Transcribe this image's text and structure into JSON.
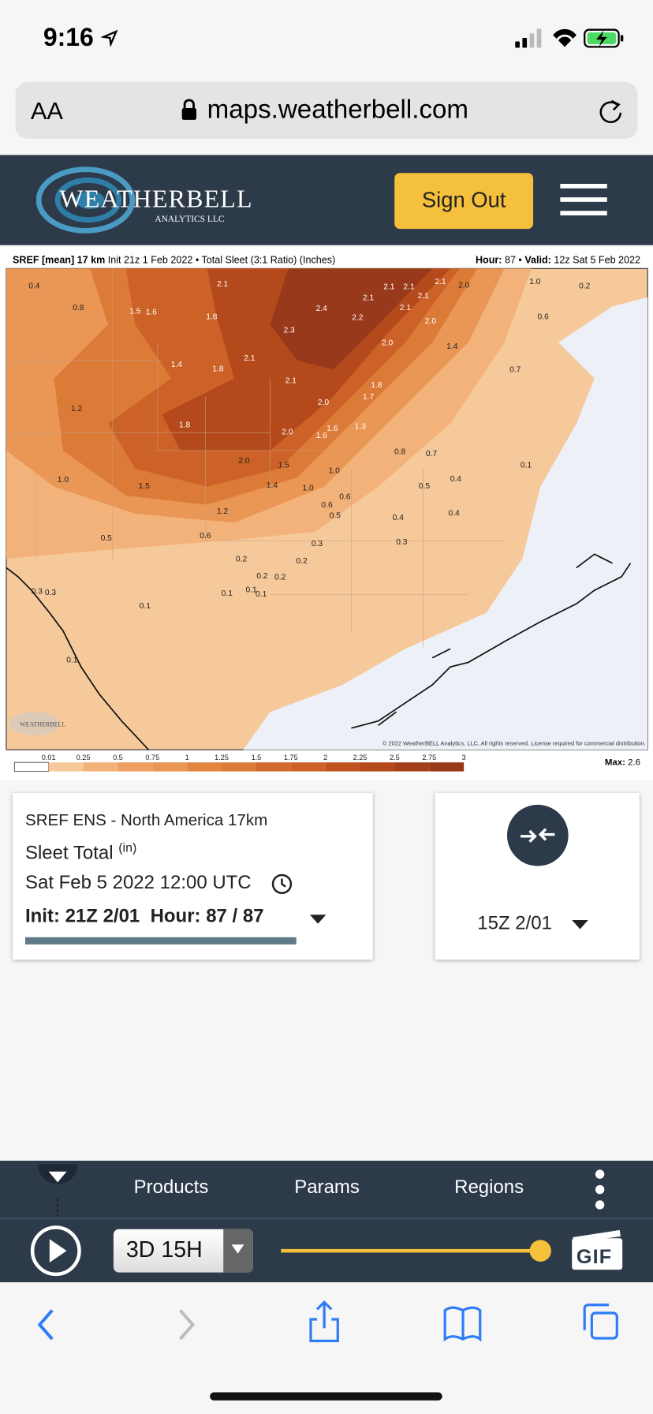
{
  "status_bar": {
    "time": "9:16"
  },
  "browser": {
    "text_size": "AA",
    "url": "maps.weatherbell.com"
  },
  "site_header": {
    "logo": "WEATHERBELL",
    "logo_sub": "ANALYTICS LLC",
    "sign_out": "Sign Out"
  },
  "map": {
    "title_bold": "SREF [mean] 17 km",
    "title_rest": "Init 21z 1 Feb 2022 • Total Sleet (3:1 Ratio) (Inches)",
    "hour_label": "Hour:",
    "hour": "87 •",
    "valid_label": "Valid:",
    "valid": "12z Sat 5 Feb 2022",
    "labels": [
      "0.4",
      "0.8",
      "1.5",
      "1.6",
      "2.1",
      "1.8",
      "2.4",
      "2.2",
      "2.3",
      "2.1",
      "2.1",
      "2.1",
      "2.1",
      "2.1",
      "2.0",
      "2.1",
      "2.0",
      "2.0",
      "1.4",
      "1.0",
      "0.2",
      "0.6",
      "0.7",
      "1.4",
      "1.8",
      "2.1",
      "2.1",
      "1.8",
      "1.7",
      "2.0",
      "1.6",
      "1.6",
      "1.3",
      "1.2",
      "1.8",
      "2.0",
      "2.0",
      "1.5",
      "1.0",
      "0.8",
      "0.7",
      "0.1",
      "1.0",
      "1.5",
      "1.4",
      "1.0",
      "0.5",
      "0.4",
      "0.6",
      "0.6",
      "0.5",
      "1.2",
      "0.4",
      "0.4",
      "0.5",
      "0.6",
      "0.3",
      "0.3",
      "0.2",
      "0.2",
      "0.2",
      "0.2",
      "0.1",
      "0.1",
      "0.1",
      "0.3",
      "0.3",
      "0.1",
      "0.1"
    ],
    "watermark": "WEATHERBELL",
    "copyright": "© 2022 WeatherBELL Analytics, LLC. All rights reserved. License required for commercial distribution.",
    "scale_ticks": [
      "0.01",
      "0.25",
      "0.5",
      "0.75",
      "1",
      "1.25",
      "1.5",
      "1.75",
      "2",
      "2.25",
      "2.5",
      "2.75",
      "3"
    ],
    "max_label": "Max:",
    "max": "2.6"
  },
  "card": {
    "model": "SREF ENS - North America 17km",
    "param": "Sleet Total",
    "unit": "(in)",
    "valid": "Sat Feb 5 2022 12:00 UTC",
    "init": "Init: 21Z 2/01  Hour: 87 / 87"
  },
  "compare": {
    "run": "15Z 2/01"
  },
  "toolbar": {
    "menu": [
      "Products",
      "Params",
      "Regions"
    ],
    "time_step": "3D 15H",
    "gif": "GIF"
  }
}
